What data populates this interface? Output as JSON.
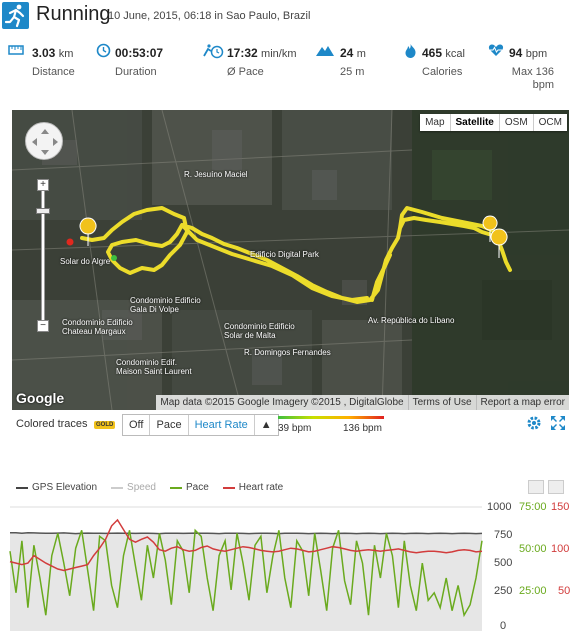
{
  "header": {
    "title": "Running",
    "subtitle": "10 June, 2015, 06:18 in Sao Paulo, Brazil",
    "icon": "running-figure-icon",
    "accent": "#1e88c8"
  },
  "stats": [
    {
      "icon": "ruler-icon",
      "value": "3.03",
      "unit": "km",
      "label": "Distance"
    },
    {
      "icon": "clock-icon",
      "value": "00:53:07",
      "unit": "",
      "label": "Duration"
    },
    {
      "icon": "pace-icon",
      "value": "17:32",
      "unit": "min/km",
      "label": "Ø Pace"
    },
    {
      "icon": "mountain-icon",
      "value": "24",
      "unit": "m",
      "label": "25 m"
    },
    {
      "icon": "flame-icon",
      "value": "465",
      "unit": "kcal",
      "label": "Calories"
    },
    {
      "icon": "heart-rate-icon",
      "value": "94",
      "unit": "bpm",
      "label": "Max 136 bpm"
    }
  ],
  "map": {
    "types": [
      "Map",
      "Satellite",
      "OSM",
      "OCM"
    ],
    "active_type": "Satellite",
    "zoom_in": "+",
    "zoom_out": "−",
    "google": "Google",
    "footer": [
      "Map data ©2015 Google Imagery ©2015 , DigitalGlobe",
      "Terms of Use",
      "Report a map error"
    ],
    "streets": [
      "Solar do Algre",
      "Condominio Edificio Gala Di Volpe",
      "Condominio Edificio Chateau Margaux",
      "Condominio Edif. Maison Saint Laurent",
      "Condominio Edificio Solar de Malta",
      "Edificio Digital Park",
      "R. Domingos Fernandes",
      "Av. República do Líbano",
      "R. Jesuíno Maciel"
    ]
  },
  "traces": {
    "label": "Colored traces",
    "badge": "GOLD",
    "options": [
      "Off",
      "Pace",
      "Heart Rate"
    ],
    "active": "Heart Rate",
    "arrow": "▲",
    "min_label": "39 bpm",
    "max_label": "136 bpm",
    "colors": {
      "low": "#3fbf3f",
      "high": "#e02020"
    }
  },
  "chart_data": {
    "type": "line",
    "legend": [
      {
        "name": "GPS Elevation",
        "color": "#444444"
      },
      {
        "name": "Speed",
        "color": "#bbbbbb"
      },
      {
        "name": "Pace",
        "color": "#6aaa1e"
      },
      {
        "name": "Heart rate",
        "color": "#d23c3c"
      }
    ],
    "axes": {
      "elevation_ticks": [
        "1000",
        "750",
        "500",
        "250",
        "0"
      ],
      "pace_ticks": [
        "75:00",
        "50:00",
        "25:00"
      ],
      "hr_ticks": [
        "150",
        "100",
        "50"
      ]
    },
    "hr_range": [
      0,
      150
    ],
    "heart_rate": [
      82,
      80,
      78,
      80,
      90,
      85,
      80,
      76,
      72,
      70,
      72,
      74,
      76,
      78,
      90,
      100,
      112,
      130,
      138,
      125,
      112,
      108,
      112,
      115,
      108,
      98,
      96,
      100,
      102,
      98,
      96,
      97,
      101,
      103,
      99,
      97,
      96,
      98,
      100,
      102,
      101,
      99,
      97,
      96,
      95,
      96,
      98,
      100,
      99,
      97,
      95,
      96,
      98,
      100,
      102,
      101,
      99,
      97,
      96,
      97,
      98,
      97,
      96,
      97,
      98,
      99,
      97,
      95,
      94,
      95,
      96,
      96,
      95,
      94,
      95,
      97,
      98,
      97,
      95,
      96
    ],
    "pace": [
      48,
      20,
      55,
      10,
      52,
      30,
      5,
      45,
      60,
      40,
      18,
      50,
      62,
      35,
      8,
      58,
      55,
      25,
      10,
      45,
      62,
      38,
      15,
      52,
      30,
      60,
      42,
      12,
      55,
      48,
      20,
      62,
      58,
      30,
      8,
      45,
      55,
      22,
      60,
      40,
      15,
      52,
      58,
      20,
      45,
      62,
      30,
      10,
      55,
      48,
      18,
      60,
      35,
      8,
      50,
      62,
      28,
      12,
      55,
      40,
      5,
      52,
      30,
      60,
      45,
      10,
      55,
      25,
      8,
      40,
      15,
      20,
      10,
      30,
      8,
      25,
      5,
      12,
      30,
      55
    ],
    "elevation": [
      770,
      770,
      765,
      770,
      768,
      766,
      765,
      764,
      766,
      768,
      765,
      762,
      764,
      766,
      765,
      764,
      763,
      765,
      766,
      765,
      764,
      763,
      765,
      764,
      763,
      762,
      764,
      765,
      764,
      763,
      765,
      766,
      765,
      764,
      763,
      762,
      764,
      765,
      764,
      763,
      762,
      763,
      765,
      764,
      763,
      762,
      764,
      765,
      764,
      763,
      762,
      763,
      764,
      763,
      762,
      763,
      764,
      763,
      762,
      763,
      764,
      763,
      762,
      763,
      764,
      763,
      762,
      763,
      764,
      763,
      762,
      763,
      764,
      763,
      762,
      763,
      764,
      763,
      762,
      763
    ]
  }
}
